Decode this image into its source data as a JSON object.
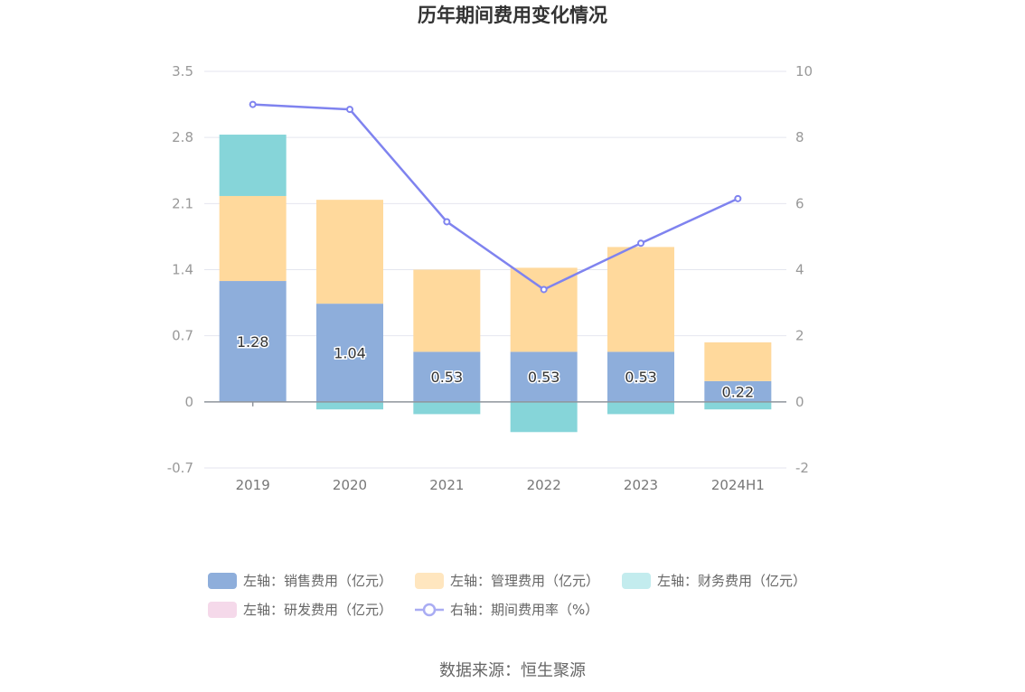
{
  "chart_data": {
    "type": "bar",
    "title": "历年期间费用变化情况",
    "categories": [
      "2019",
      "2020",
      "2021",
      "2022",
      "2023",
      "2024H1"
    ],
    "stacked": true,
    "left_axis": {
      "min": -0.7,
      "max": 3.5,
      "ticks": [
        "-0.7",
        "0",
        "0.7",
        "1.4",
        "2.1",
        "2.8",
        "3.5"
      ]
    },
    "right_axis": {
      "min": -2,
      "max": 10,
      "ticks": [
        "-2",
        "0",
        "2",
        "4",
        "6",
        "8",
        "10"
      ]
    },
    "grid": true,
    "legend_position": "bottom",
    "series": [
      {
        "name": "左轴：销售费用（亿元）",
        "axis": "left",
        "type": "bar",
        "color": "#8eaedb",
        "values": [
          1.28,
          1.04,
          0.53,
          0.53,
          0.53,
          0.22
        ],
        "labels": [
          "1.28",
          "1.04",
          "0.53",
          "0.53",
          "0.53",
          "0.22"
        ]
      },
      {
        "name": "左轴：管理费用（亿元）",
        "axis": "left",
        "type": "bar",
        "color": "#ffd99c",
        "values": [
          0.9,
          1.1,
          0.87,
          0.89,
          1.11,
          0.41
        ]
      },
      {
        "name": "左轴：财务费用（亿元）",
        "axis": "left",
        "type": "bar",
        "color": "#86d5d9",
        "values": [
          0.65,
          -0.08,
          -0.13,
          -0.32,
          -0.13,
          -0.08
        ]
      },
      {
        "name": "左轴：研发费用（亿元）",
        "axis": "left",
        "type": "bar",
        "color": "#f5d3e7",
        "values": [
          0,
          0,
          0,
          0,
          0,
          0
        ]
      },
      {
        "name": "右轴：期间费用率（%）",
        "axis": "right",
        "type": "line",
        "color": "#7f83ef",
        "values": [
          9.0,
          8.85,
          5.45,
          3.4,
          4.8,
          6.15
        ]
      }
    ]
  },
  "legend_colors": {
    "sales": "#8eaedb",
    "admin": "#ffe6bf",
    "finance": "#c3ecee",
    "rnd": "#f5d9ea",
    "rate": "#a9acf3"
  },
  "source": "数据来源：恒生聚源"
}
